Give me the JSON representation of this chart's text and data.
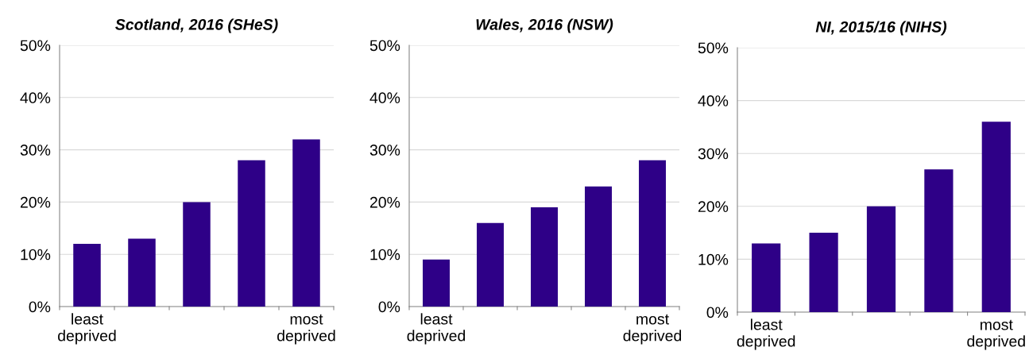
{
  "chart_data": [
    {
      "type": "bar",
      "title": "Scotland, 2016 (SHeS)",
      "categories": [
        "least\ndeprived",
        null,
        null,
        null,
        "most\ndeprived"
      ],
      "values": [
        12,
        13,
        20,
        28,
        32
      ],
      "color": "#2e0087",
      "ylim": [
        0,
        50
      ],
      "yticks": [
        {
          "value": 0,
          "label": "0%"
        },
        {
          "value": 10,
          "label": "10%"
        },
        {
          "value": 20,
          "label": "20%"
        },
        {
          "value": 30,
          "label": "30%"
        },
        {
          "value": 40,
          "label": "40%"
        },
        {
          "value": 50,
          "label": "50%"
        }
      ],
      "grid": "y"
    },
    {
      "type": "bar",
      "title": "Wales, 2016 (NSW)",
      "categories": [
        "least\ndeprived",
        null,
        null,
        null,
        "most\ndeprived"
      ],
      "values": [
        9,
        16,
        19,
        23,
        28
      ],
      "color": "#2e0087",
      "ylim": [
        0,
        50
      ],
      "yticks": [
        {
          "value": 0,
          "label": "0%"
        },
        {
          "value": 10,
          "label": "10%"
        },
        {
          "value": 20,
          "label": "20%"
        },
        {
          "value": 30,
          "label": "30%"
        },
        {
          "value": 40,
          "label": "40%"
        },
        {
          "value": 50,
          "label": "50%"
        }
      ],
      "grid": "y"
    },
    {
      "type": "bar",
      "title": "NI, 2015/16 (NIHS)",
      "categories": [
        "least\ndeprived",
        null,
        null,
        null,
        "most\ndeprived"
      ],
      "values": [
        13,
        15,
        20,
        27,
        36
      ],
      "color": "#2e0087",
      "ylim": [
        0,
        50
      ],
      "yticks": [
        {
          "value": 0,
          "label": "0%"
        },
        {
          "value": 10,
          "label": "10%"
        },
        {
          "value": 20,
          "label": "20%"
        },
        {
          "value": 30,
          "label": "30%"
        },
        {
          "value": 40,
          "label": "40%"
        },
        {
          "value": 50,
          "label": "50%"
        }
      ],
      "grid": "y"
    }
  ]
}
